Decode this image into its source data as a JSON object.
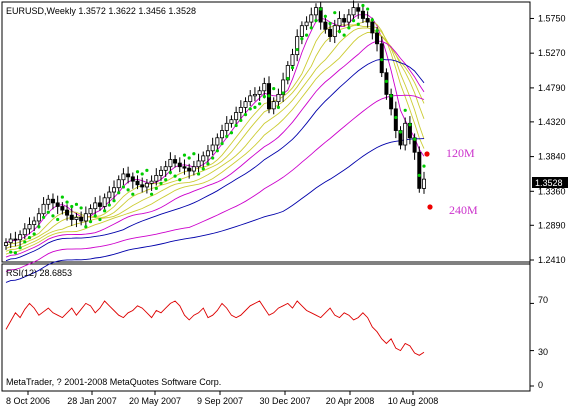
{
  "header": {
    "symbol_line": "EURUSD,Weekly  1.3572 1.3622 1.3456 1.3528"
  },
  "price_axis": {
    "labels": [
      "1.5750",
      "1.5270",
      "1.4790",
      "1.4320",
      "1.3840",
      "1.3360",
      "1.2890",
      "1.2410"
    ],
    "values": [
      1.575,
      1.527,
      1.479,
      1.432,
      1.384,
      1.336,
      1.289,
      1.241
    ],
    "current_price": "1.3528"
  },
  "annotations": {
    "label_120": "120M",
    "label_240": "240M",
    "color": "#cc33cc"
  },
  "rsi_panel": {
    "title": "RSI(12) 28.6853",
    "levels": [
      "70",
      "30",
      "0"
    ],
    "level_values": [
      70,
      30,
      0
    ]
  },
  "footer": {
    "copyright": "MetaTrader, ? 2001-2008 MetaQuotes Software Corp."
  },
  "time_axis": {
    "labels": [
      "8 Oct 2006",
      "28 Jan 2007",
      "20 May 2007",
      "9 Sep 2007",
      "30 Dec 2007",
      "20 Apr 2008",
      "10 Aug 2008"
    ]
  },
  "colors": {
    "background": "#ffffff",
    "frame": "#000000",
    "candle": "#000000",
    "psar": "#00cc00",
    "ma_magenta": "#cc00cc",
    "ma_blue": "#0000aa",
    "ma_yellowgreen": "#cccc33",
    "rsi_line": "#dd0000",
    "marker": "#ee0000"
  },
  "chart_data": {
    "type": "candlestick",
    "title": "EURUSD,Weekly",
    "ylim": [
      1.241,
      1.595
    ],
    "closes": [
      1.265,
      1.27,
      1.269,
      1.276,
      1.284,
      1.29,
      1.295,
      1.305,
      1.318,
      1.325,
      1.32,
      1.315,
      1.31,
      1.303,
      1.297,
      1.3,
      1.295,
      1.305,
      1.312,
      1.32,
      1.315,
      1.327,
      1.335,
      1.341,
      1.352,
      1.36,
      1.356,
      1.35,
      1.345,
      1.342,
      1.347,
      1.35,
      1.358,
      1.365,
      1.37,
      1.38,
      1.375,
      1.37,
      1.368,
      1.364,
      1.37,
      1.378,
      1.385,
      1.392,
      1.4,
      1.41,
      1.42,
      1.43,
      1.435,
      1.445,
      1.452,
      1.46,
      1.468,
      1.47,
      1.475,
      1.485,
      1.45,
      1.46,
      1.47,
      1.49,
      1.51,
      1.525,
      1.55,
      1.565,
      1.57,
      1.58,
      1.59,
      1.57,
      1.56,
      1.55,
      1.565,
      1.575,
      1.57,
      1.58,
      1.59,
      1.585,
      1.575,
      1.57,
      1.555,
      1.54,
      1.5,
      1.47,
      1.45,
      1.42,
      1.4,
      1.43,
      1.41,
      1.39,
      1.34,
      1.3528
    ],
    "rsi": [
      48,
      55,
      62,
      58,
      65,
      70,
      66,
      60,
      63,
      66,
      62,
      60,
      58,
      62,
      66,
      60,
      65,
      70,
      68,
      62,
      66,
      72,
      68,
      64,
      60,
      58,
      62,
      64,
      68,
      66,
      62,
      58,
      64,
      62,
      66,
      70,
      72,
      68,
      60,
      56,
      60,
      62,
      66,
      58,
      60,
      64,
      70,
      66,
      60,
      58,
      60,
      64,
      68,
      70,
      72,
      66,
      60,
      62,
      66,
      68,
      70,
      66,
      72,
      68,
      64,
      62,
      60,
      58,
      62,
      66,
      60,
      58,
      62,
      60,
      56,
      58,
      62,
      58,
      50,
      46,
      40,
      36,
      40,
      32,
      30,
      36,
      34,
      28,
      26,
      28.6853
    ],
    "rsi_ylim": [
      0,
      100
    ],
    "moving_average_labels": [
      "120M",
      "240M"
    ]
  }
}
